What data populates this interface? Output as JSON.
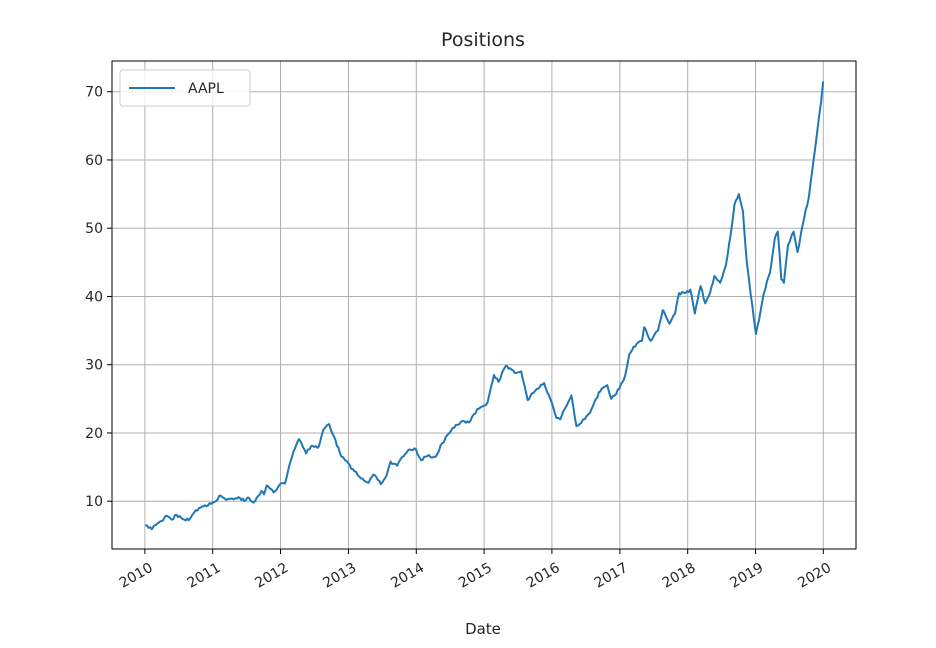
{
  "chart_data": {
    "type": "line",
    "title": "Positions",
    "xlabel": "Date",
    "ylabel": "",
    "xlim": [
      "2009-07-08",
      "2020-06-25"
    ],
    "ylim": [
      3,
      74.5
    ],
    "grid": true,
    "legend": {
      "position": "top-left"
    },
    "x_ticks": [
      "2010",
      "2011",
      "2012",
      "2013",
      "2014",
      "2015",
      "2016",
      "2017",
      "2018",
      "2019",
      "2020"
    ],
    "y_ticks": [
      10,
      20,
      30,
      40,
      50,
      60,
      70
    ],
    "series": [
      {
        "name": "AAPL",
        "color": "#1f77b4",
        "points": [
          [
            "2010-01-04",
            6.5
          ],
          [
            "2010-01-20",
            6.1
          ],
          [
            "2010-02-08",
            5.9
          ],
          [
            "2010-03-01",
            6.5
          ],
          [
            "2010-04-01",
            7.1
          ],
          [
            "2010-04-26",
            7.9
          ],
          [
            "2010-05-25",
            7.3
          ],
          [
            "2010-06-21",
            8.0
          ],
          [
            "2010-07-15",
            7.6
          ],
          [
            "2010-08-25",
            7.2
          ],
          [
            "2010-09-22",
            8.3
          ],
          [
            "2010-10-20",
            9.0
          ],
          [
            "2010-11-20",
            9.4
          ],
          [
            "2010-12-31",
            9.8
          ],
          [
            "2011-02-15",
            10.8
          ],
          [
            "2011-03-16",
            10.2
          ],
          [
            "2011-04-15",
            10.4
          ],
          [
            "2011-05-20",
            10.6
          ],
          [
            "2011-06-20",
            10.0
          ],
          [
            "2011-07-15",
            10.5
          ],
          [
            "2011-08-09",
            9.8
          ],
          [
            "2011-09-20",
            11.5
          ],
          [
            "2011-10-04",
            11.0
          ],
          [
            "2011-10-18",
            12.3
          ],
          [
            "2011-11-25",
            11.3
          ],
          [
            "2011-12-30",
            12.5
          ],
          [
            "2012-01-25",
            12.6
          ],
          [
            "2012-02-15",
            15.0
          ],
          [
            "2012-03-10",
            17.2
          ],
          [
            "2012-04-09",
            19.1
          ],
          [
            "2012-05-18",
            17.0
          ],
          [
            "2012-06-15",
            18.1
          ],
          [
            "2012-07-25",
            18.0
          ],
          [
            "2012-08-20",
            20.5
          ],
          [
            "2012-09-19",
            21.3
          ],
          [
            "2012-10-15",
            19.5
          ],
          [
            "2012-11-15",
            17.1
          ],
          [
            "2012-12-14",
            16.0
          ],
          [
            "2013-01-24",
            14.7
          ],
          [
            "2013-03-01",
            13.6
          ],
          [
            "2013-04-19",
            12.7
          ],
          [
            "2013-05-15",
            13.9
          ],
          [
            "2013-06-24",
            12.5
          ],
          [
            "2013-07-25",
            13.8
          ],
          [
            "2013-08-15",
            15.8
          ],
          [
            "2013-09-20",
            15.2
          ],
          [
            "2013-10-25",
            16.6
          ],
          [
            "2013-11-25",
            17.6
          ],
          [
            "2013-12-30",
            17.6
          ],
          [
            "2014-01-28",
            16.0
          ],
          [
            "2014-03-01",
            16.6
          ],
          [
            "2014-04-15",
            16.5
          ],
          [
            "2014-05-20",
            18.5
          ],
          [
            "2014-06-25",
            19.9
          ],
          [
            "2014-07-25",
            20.8
          ],
          [
            "2014-08-28",
            21.6
          ],
          [
            "2014-09-25",
            21.5
          ],
          [
            "2014-10-20",
            21.8
          ],
          [
            "2014-11-25",
            23.5
          ],
          [
            "2014-12-31",
            24.0
          ],
          [
            "2015-01-20",
            24.5
          ],
          [
            "2015-02-23",
            28.5
          ],
          [
            "2015-03-20",
            27.5
          ],
          [
            "2015-04-27",
            29.8
          ],
          [
            "2015-05-20",
            29.5
          ],
          [
            "2015-06-25",
            28.8
          ],
          [
            "2015-07-20",
            29.0
          ],
          [
            "2015-08-24",
            24.8
          ],
          [
            "2015-09-15",
            25.8
          ],
          [
            "2015-10-20",
            26.5
          ],
          [
            "2015-11-20",
            27.3
          ],
          [
            "2015-12-31",
            24.5
          ],
          [
            "2016-01-25",
            22.2
          ],
          [
            "2016-02-15",
            22.0
          ],
          [
            "2016-03-20",
            24.0
          ],
          [
            "2016-04-15",
            25.5
          ],
          [
            "2016-05-12",
            21.0
          ],
          [
            "2016-06-25",
            22.0
          ],
          [
            "2016-07-25",
            23.0
          ],
          [
            "2016-08-25",
            25.0
          ],
          [
            "2016-09-25",
            26.5
          ],
          [
            "2016-10-25",
            27.0
          ],
          [
            "2016-11-15",
            25.0
          ],
          [
            "2016-12-30",
            26.5
          ],
          [
            "2017-01-30",
            28.5
          ],
          [
            "2017-02-20",
            31.5
          ],
          [
            "2017-03-31",
            33.0
          ],
          [
            "2017-04-30",
            33.5
          ],
          [
            "2017-05-12",
            35.5
          ],
          [
            "2017-06-15",
            33.5
          ],
          [
            "2017-07-25",
            35.0
          ],
          [
            "2017-08-20",
            38.0
          ],
          [
            "2017-09-25",
            36.0
          ],
          [
            "2017-10-25",
            37.5
          ],
          [
            "2017-11-15",
            40.5
          ],
          [
            "2017-12-20",
            40.5
          ],
          [
            "2018-01-15",
            41.0
          ],
          [
            "2018-02-08",
            37.5
          ],
          [
            "2018-03-12",
            41.5
          ],
          [
            "2018-04-05",
            39.0
          ],
          [
            "2018-05-01",
            40.5
          ],
          [
            "2018-05-25",
            43.0
          ],
          [
            "2018-06-25",
            42.0
          ],
          [
            "2018-07-25",
            44.5
          ],
          [
            "2018-08-20",
            49.0
          ],
          [
            "2018-09-10",
            53.5
          ],
          [
            "2018-10-03",
            55.0
          ],
          [
            "2018-10-25",
            52.5
          ],
          [
            "2018-11-15",
            45.0
          ],
          [
            "2018-12-05",
            40.5
          ],
          [
            "2019-01-03",
            34.5
          ],
          [
            "2019-01-20",
            36.5
          ],
          [
            "2019-02-15",
            40.5
          ],
          [
            "2019-03-20",
            43.5
          ],
          [
            "2019-04-15",
            48.5
          ],
          [
            "2019-05-01",
            49.5
          ],
          [
            "2019-05-20",
            42.5
          ],
          [
            "2019-06-03",
            42.0
          ],
          [
            "2019-06-25",
            47.5
          ],
          [
            "2019-07-25",
            49.5
          ],
          [
            "2019-08-15",
            46.5
          ],
          [
            "2019-09-20",
            51.5
          ],
          [
            "2019-10-15",
            54.5
          ],
          [
            "2019-11-10",
            60.0
          ],
          [
            "2019-12-01",
            64.5
          ],
          [
            "2019-12-20",
            68.5
          ],
          [
            "2019-12-31",
            71.5
          ]
        ]
      }
    ]
  }
}
